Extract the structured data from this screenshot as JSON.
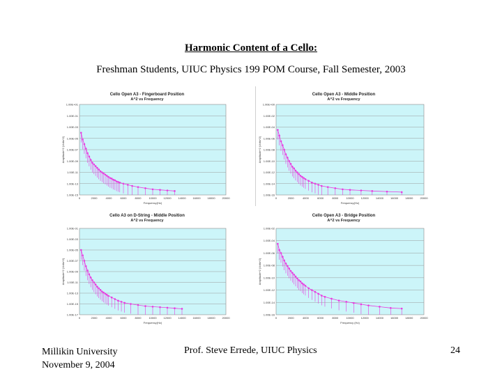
{
  "slide": {
    "title": "Harmonic Content of a Cello:",
    "subtitle": "Freshman Students, UIUC Physics 199 POM Course, Fall Semester, 2003",
    "footer_left_line1": "Millikin University",
    "footer_left_line2": "November 9, 2004",
    "footer_center": "Prof. Steve Errede, UIUC Physics",
    "page_number": "24"
  },
  "colors": {
    "plot_bg": "#ccf5f9",
    "series": "#e83ce0",
    "grid": "#9a9a9a"
  },
  "chart_data": [
    {
      "type": "scatter",
      "title": "Cello Open A3 - Fingerboard Position",
      "subtitle": "A^2 vs Frequency",
      "xlabel": "Frequency(Hz)",
      "ylabel": "Amplitude^2 (Volts^2)",
      "xlim": [
        0,
        20000
      ],
      "x_ticks": [
        "0",
        "2000",
        "4000",
        "6000",
        "8000",
        "10000",
        "12000",
        "14000",
        "16000",
        "18000",
        "20000"
      ],
      "y_ticks": [
        "1.00E+01",
        "1.00E-01",
        "1.00E-03",
        "1.00E-05",
        "1.00E-07",
        "1.00E-09",
        "1.00E-11",
        "1.00E-13",
        "1.00E-15"
      ],
      "log_y": true,
      "y_exp_range": [
        -15,
        1
      ],
      "grid": true,
      "series": [
        {
          "values": [
            [
              220,
              -4.0
            ],
            [
              440,
              -5.2
            ],
            [
              660,
              -6.0
            ],
            [
              880,
              -6.8
            ],
            [
              1100,
              -7.6
            ],
            [
              1320,
              -8.2
            ],
            [
              1540,
              -8.8
            ],
            [
              1760,
              -9.3
            ],
            [
              1980,
              -9.6
            ],
            [
              2200,
              -9.9
            ],
            [
              2420,
              -10.2
            ],
            [
              2640,
              -10.5
            ],
            [
              2860,
              -10.8
            ],
            [
              3080,
              -11.0
            ],
            [
              3300,
              -11.2
            ],
            [
              3520,
              -11.4
            ],
            [
              3740,
              -11.6
            ],
            [
              3960,
              -11.8
            ],
            [
              4180,
              -12.0
            ],
            [
              4400,
              -12.1
            ],
            [
              4620,
              -12.3
            ],
            [
              4840,
              -12.4
            ],
            [
              5060,
              -12.6
            ],
            [
              5280,
              -12.7
            ],
            [
              5500,
              -12.8
            ],
            [
              6000,
              -13.0
            ],
            [
              6600,
              -13.2
            ],
            [
              7200,
              -13.4
            ],
            [
              8000,
              -13.6
            ],
            [
              9000,
              -13.8
            ],
            [
              10000,
              -14.0
            ],
            [
              11000,
              -14.1
            ],
            [
              12000,
              -14.2
            ],
            [
              13000,
              -14.3
            ]
          ]
        }
      ]
    },
    {
      "type": "scatter",
      "title": "Cello Open A3 - Middle Position",
      "subtitle": "A^2 vs Frequency",
      "xlabel": "Frequency(Hz)",
      "ylabel": "Amplitude^2 (Volts^2)",
      "xlim": [
        0,
        20000
      ],
      "x_ticks": [
        "0",
        "2000",
        "4000",
        "6000",
        "8000",
        "10000",
        "12000",
        "14000",
        "16000",
        "18000",
        "20000"
      ],
      "y_ticks": [
        "1.00E+00",
        "1.00E-02",
        "1.00E-04",
        "1.00E-06",
        "1.00E-08",
        "1.00E-10",
        "1.00E-12",
        "1.00E-14",
        "1.00E-16"
      ],
      "log_y": true,
      "y_exp_range": [
        -16,
        0
      ],
      "grid": true,
      "series": [
        {
          "values": [
            [
              220,
              -4.5
            ],
            [
              440,
              -5.5
            ],
            [
              660,
              -6.5
            ],
            [
              880,
              -7.2
            ],
            [
              1100,
              -8.0
            ],
            [
              1320,
              -8.8
            ],
            [
              1540,
              -9.4
            ],
            [
              1760,
              -10.0
            ],
            [
              1980,
              -10.5
            ],
            [
              2200,
              -11.0
            ],
            [
              2420,
              -11.3
            ],
            [
              2640,
              -11.7
            ],
            [
              2860,
              -12.0
            ],
            [
              3080,
              -12.3
            ],
            [
              3300,
              -12.6
            ],
            [
              3520,
              -12.8
            ],
            [
              3740,
              -13.0
            ],
            [
              3960,
              -13.2
            ],
            [
              4400,
              -13.5
            ],
            [
              4840,
              -13.8
            ],
            [
              5280,
              -14.0
            ],
            [
              5720,
              -14.2
            ],
            [
              6160,
              -14.4
            ],
            [
              7000,
              -14.6
            ],
            [
              8000,
              -14.8
            ],
            [
              9000,
              -15.0
            ],
            [
              10000,
              -15.1
            ],
            [
              11500,
              -15.2
            ],
            [
              13000,
              -15.3
            ],
            [
              15000,
              -15.4
            ],
            [
              17000,
              -15.5
            ]
          ]
        }
      ]
    },
    {
      "type": "scatter",
      "title": "Cello A3 on D-String - Middle Position",
      "subtitle": "A^2 vs Frequency",
      "xlabel": "Frequency(Hz)",
      "ylabel": "Amplitude^2 (Volts^2)",
      "xlim": [
        0,
        20000
      ],
      "x_ticks": [
        "0",
        "2000",
        "4000",
        "6000",
        "8000",
        "10000",
        "12000",
        "14000",
        "16000",
        "18000",
        "20000"
      ],
      "y_ticks": [
        "1.00E-01",
        "1.00E-03",
        "1.00E-05",
        "1.00E-07",
        "1.00E-09",
        "1.00E-11",
        "1.00E-13",
        "1.00E-15",
        "1.00E-17"
      ],
      "log_y": true,
      "y_exp_range": [
        -17,
        -1
      ],
      "grid": true,
      "series": [
        {
          "values": [
            [
              220,
              -5.0
            ],
            [
              440,
              -6.0
            ],
            [
              660,
              -7.0
            ],
            [
              880,
              -8.0
            ],
            [
              1100,
              -8.8
            ],
            [
              1320,
              -9.5
            ],
            [
              1540,
              -10.1
            ],
            [
              1760,
              -10.6
            ],
            [
              1980,
              -11.0
            ],
            [
              2200,
              -11.4
            ],
            [
              2420,
              -11.8
            ],
            [
              2640,
              -12.1
            ],
            [
              2860,
              -12.4
            ],
            [
              3080,
              -12.7
            ],
            [
              3300,
              -12.9
            ],
            [
              3520,
              -13.1
            ],
            [
              3740,
              -13.3
            ],
            [
              3960,
              -13.5
            ],
            [
              4400,
              -13.8
            ],
            [
              4840,
              -14.1
            ],
            [
              5280,
              -14.4
            ],
            [
              5720,
              -14.6
            ],
            [
              6160,
              -14.8
            ],
            [
              7000,
              -15.0
            ],
            [
              8000,
              -15.2
            ],
            [
              9000,
              -15.4
            ],
            [
              10000,
              -15.5
            ],
            [
              11000,
              -15.6
            ],
            [
              12000,
              -15.7
            ],
            [
              13000,
              -15.8
            ],
            [
              14000,
              -15.9
            ]
          ]
        }
      ]
    },
    {
      "type": "scatter",
      "title": "Cello Open A3 - Bridge Position",
      "subtitle": "A^2 vs Frequency",
      "xlabel": "Frequency (Hz)",
      "ylabel": "Amplitude^2 (Volts^2)",
      "xlim": [
        0,
        20000
      ],
      "x_ticks": [
        "0",
        "2000",
        "4000",
        "6000",
        "8000",
        "10000",
        "12000",
        "14000",
        "16000",
        "18000",
        "20000"
      ],
      "y_ticks": [
        "1.00E-02",
        "1.00E-04",
        "1.00E-06",
        "1.00E-08",
        "1.00E-10",
        "1.00E-12",
        "1.00E-14",
        "1.00E-16"
      ],
      "log_y": true,
      "y_exp_range": [
        -16,
        -2
      ],
      "grid": true,
      "series": [
        {
          "values": [
            [
              220,
              -4.5
            ],
            [
              440,
              -5.5
            ],
            [
              660,
              -6.0
            ],
            [
              880,
              -6.6
            ],
            [
              1100,
              -7.2
            ],
            [
              1320,
              -7.7
            ],
            [
              1540,
              -8.1
            ],
            [
              1760,
              -8.5
            ],
            [
              1980,
              -8.9
            ],
            [
              2200,
              -9.2
            ],
            [
              2420,
              -9.5
            ],
            [
              2640,
              -9.8
            ],
            [
              2860,
              -10.1
            ],
            [
              3080,
              -10.4
            ],
            [
              3300,
              -10.6
            ],
            [
              3520,
              -10.9
            ],
            [
              3740,
              -11.1
            ],
            [
              3960,
              -11.3
            ],
            [
              4400,
              -11.7
            ],
            [
              4840,
              -12.0
            ],
            [
              5280,
              -12.3
            ],
            [
              5720,
              -12.6
            ],
            [
              6160,
              -12.9
            ],
            [
              6600,
              -13.1
            ],
            [
              7500,
              -13.4
            ],
            [
              8500,
              -13.7
            ],
            [
              9500,
              -13.9
            ],
            [
              10500,
              -14.1
            ],
            [
              11500,
              -14.3
            ],
            [
              12500,
              -14.5
            ],
            [
              14000,
              -14.7
            ],
            [
              15500,
              -14.9
            ],
            [
              17000,
              -15.0
            ]
          ]
        }
      ]
    }
  ]
}
